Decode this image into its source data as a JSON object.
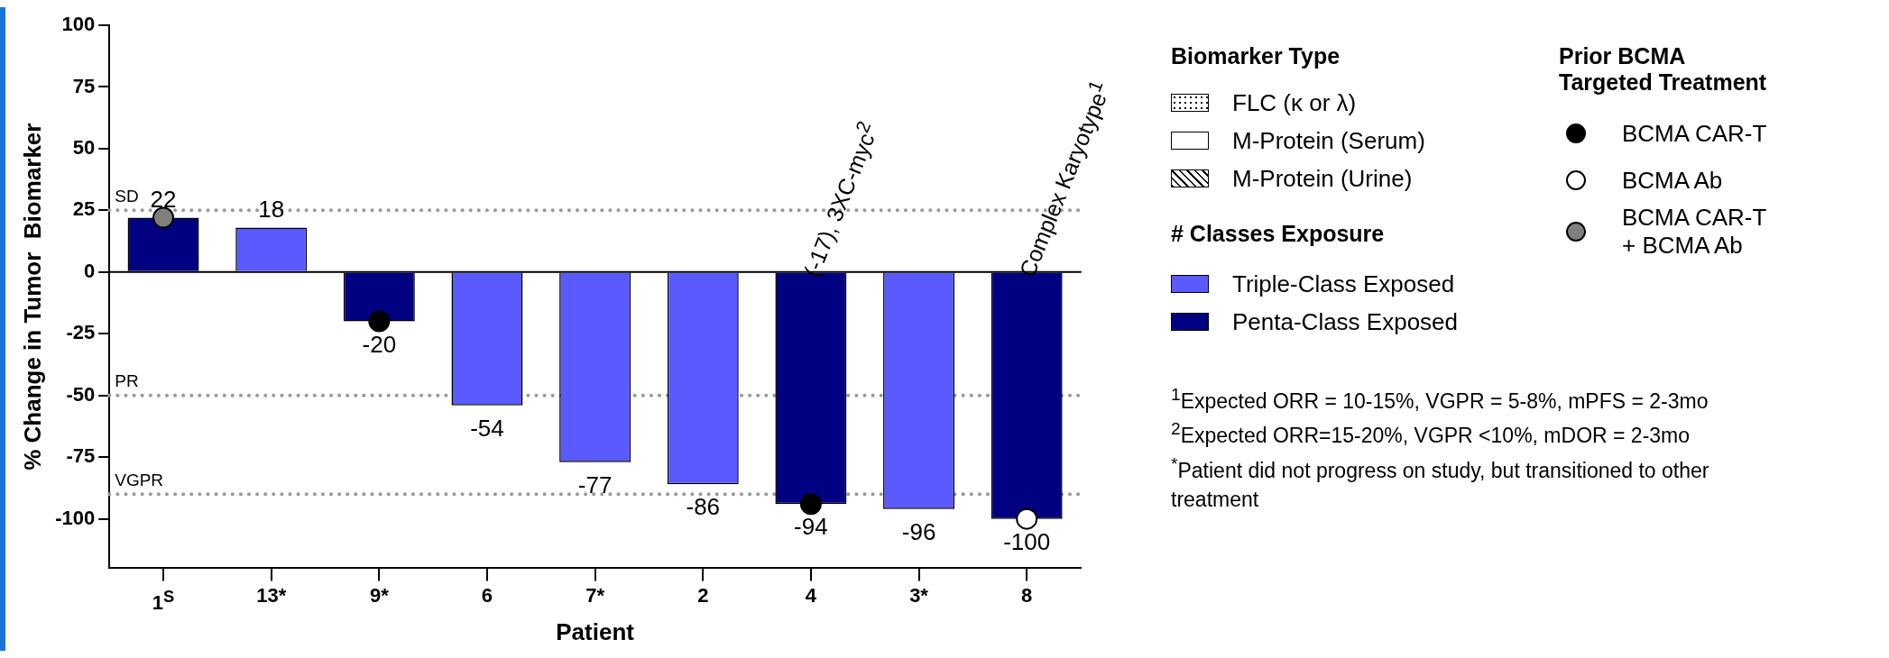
{
  "chart_data": {
    "type": "bar",
    "xlabel": "Patient",
    "ylabel": "% Change in Tumor  Biomarker",
    "categories": [
      "1$^{S}$",
      "13*",
      "9*",
      "6",
      "7*",
      "2",
      "4",
      "3*",
      "8"
    ],
    "series": [
      {
        "name": "Triple-Class Exposed",
        "color": "#5a5aff",
        "values": [
          null,
          18,
          null,
          -54,
          -77,
          -86,
          null,
          -96,
          null
        ],
        "value_labels": [
          null,
          "18",
          null,
          "-54",
          "-77",
          "-86",
          null,
          "-96",
          null
        ]
      },
      {
        "name": "Penta-Class Exposed",
        "color": "#000080",
        "values": [
          22,
          null,
          -20,
          null,
          null,
          null,
          -94,
          null,
          -100
        ],
        "value_labels": [
          "22",
          null,
          "-20",
          null,
          null,
          null,
          "-94",
          null,
          "-100"
        ]
      },
      {
        "name": "BCMA CAR-T",
        "type": "scatter",
        "color": "#000000",
        "x": [
          "9*",
          "4"
        ],
        "values": [
          -20,
          -94
        ]
      },
      {
        "name": "BCMA Ab",
        "type": "scatter",
        "color": "#ffffff",
        "x": [
          "8"
        ],
        "values": [
          -100
        ]
      },
      {
        "name": "BCMA CAR-T + BCMA Ab",
        "type": "scatter",
        "color": "#808080",
        "x": [
          "1$^{S}$"
        ],
        "values": [
          22
        ]
      }
    ],
    "ylim": [
      -120,
      100
    ],
    "yticks": [
      -100,
      -75,
      -50,
      -25,
      0,
      25,
      50,
      75,
      100
    ],
    "legend": "right",
    "marker": "circle",
    "ref_lines": [
      {
        "axis": "y",
        "value": 25,
        "label": "SD",
        "color": "#999999",
        "line_style": "dotted"
      },
      {
        "axis": "y",
        "value": -50,
        "label": "PR",
        "color": "#999999",
        "line_style": "dotted"
      },
      {
        "axis": "y",
        "value": -90,
        "label": "VGPR",
        "color": "#999999",
        "line_style": "dotted"
      },
      {
        "axis": "y",
        "value": 0,
        "color": "#000000",
        "line_style": "solid"
      }
    ],
    "annotations": [
      "Biomarker Type",
      "FLC (κ or λ)",
      "M-Protein (Serum)",
      "M-Protein (Urine)",
      "# Classes Exposure",
      "Prior BCMA Targeted Treatment",
      "$^{1}$Expected ORR = 10-15%, VGPR = 5-8%, mPFS = 2-3mo",
      "$^{2}$Expected ORR=15-20%, VGPR <10%, mDOR = 2-3mo",
      "$^{*}$Patient did not progress on study, but transitioned to other treatment",
      {
        "text": "(-17), 3XC-myc$^{2}$",
        "x": "4",
        "y": 0
      },
      {
        "text": "Complex Karyotype$^{1}$",
        "x": "8",
        "y": 0
      }
    ]
  }
}
